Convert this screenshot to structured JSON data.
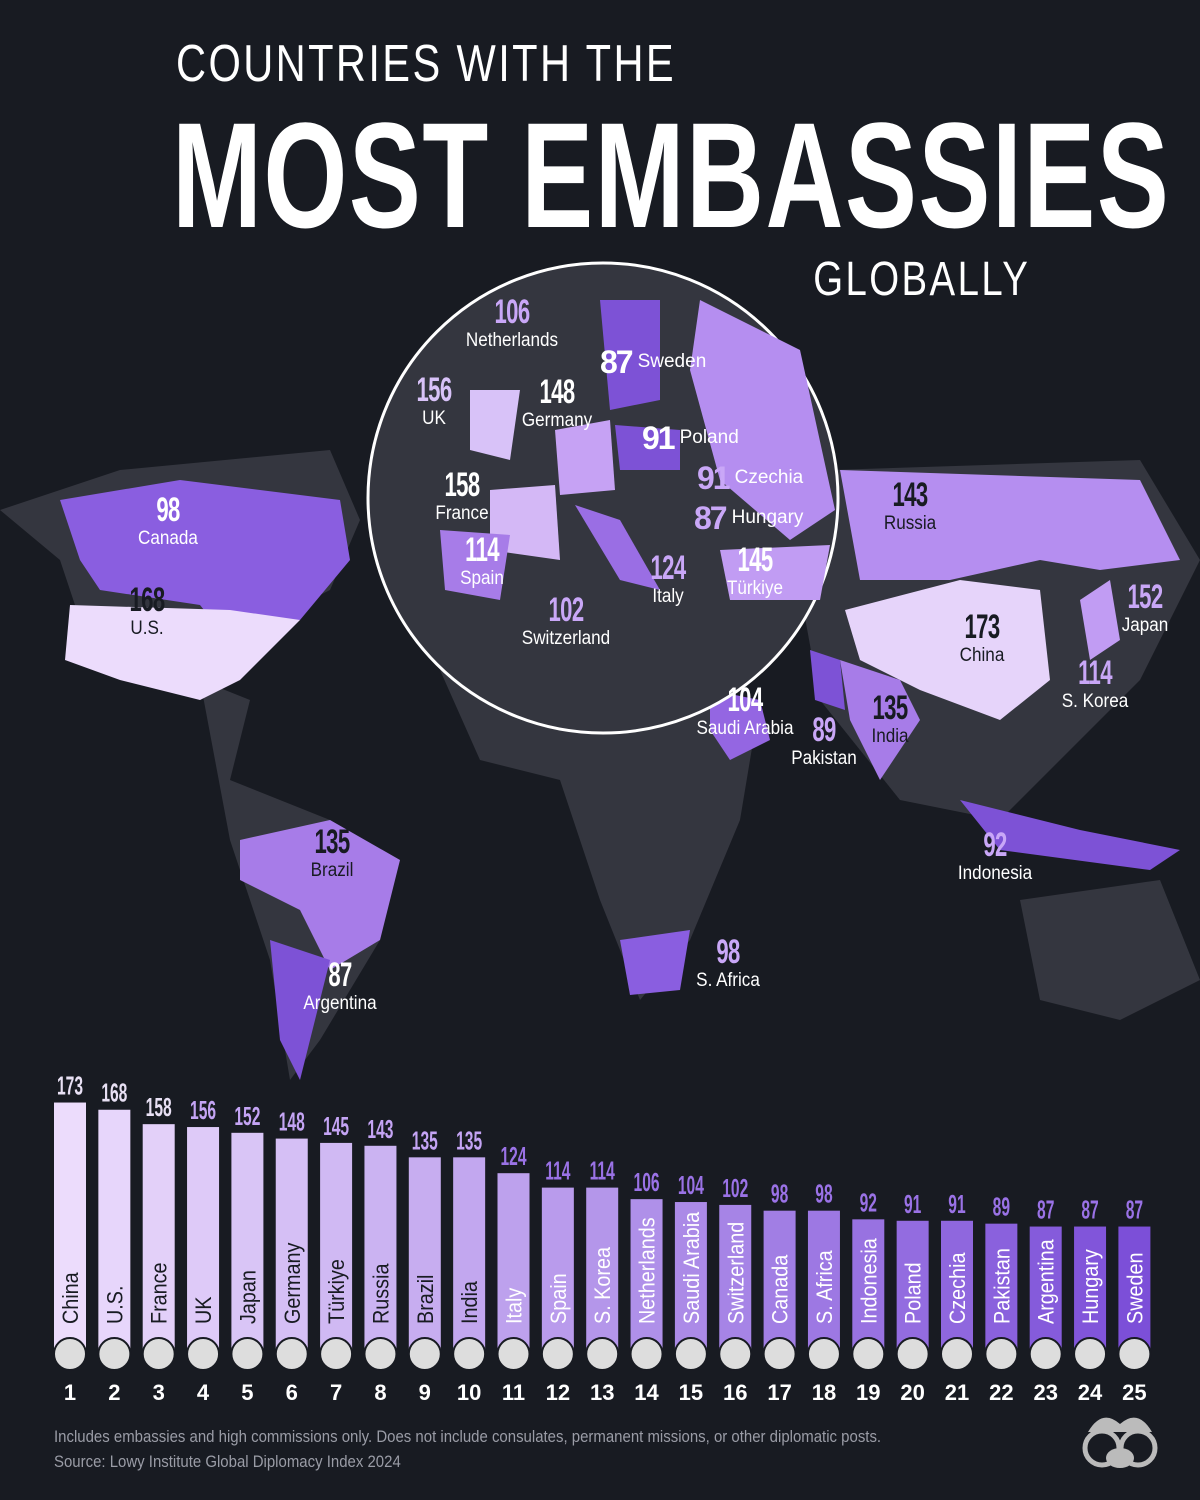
{
  "title": {
    "line1": "COUNTRIES WITH THE",
    "line2": "MOST EMBASSIES",
    "line3": "GLOBALLY"
  },
  "map": {
    "labels": [
      {
        "name": "Netherlands",
        "value": "106"
      },
      {
        "name": "Sweden",
        "value": "87"
      },
      {
        "name": "Germany",
        "value": "148"
      },
      {
        "name": "UK",
        "value": "156"
      },
      {
        "name": "Poland",
        "value": "91"
      },
      {
        "name": "Czechia",
        "value": "91"
      },
      {
        "name": "Hungary",
        "value": "87"
      },
      {
        "name": "France",
        "value": "158"
      },
      {
        "name": "Spain",
        "value": "114"
      },
      {
        "name": "Switzerland",
        "value": "102"
      },
      {
        "name": "Italy",
        "value": "124"
      },
      {
        "name": "Türkiye",
        "value": "145"
      },
      {
        "name": "Canada",
        "value": "98"
      },
      {
        "name": "U.S.",
        "value": "168"
      },
      {
        "name": "Russia",
        "value": "143"
      },
      {
        "name": "Japan",
        "value": "152"
      },
      {
        "name": "China",
        "value": "173"
      },
      {
        "name": "S. Korea",
        "value": "114"
      },
      {
        "name": "Saudi Arabia",
        "value": "104"
      },
      {
        "name": "Pakistan",
        "value": "89"
      },
      {
        "name": "India",
        "value": "135"
      },
      {
        "name": "Indonesia",
        "value": "92"
      },
      {
        "name": "Brazil",
        "value": "135"
      },
      {
        "name": "S. Africa",
        "value": "98"
      },
      {
        "name": "Argentina",
        "value": "87"
      }
    ]
  },
  "chart_data": {
    "type": "bar",
    "categories": [
      "China",
      "U.S.",
      "France",
      "UK",
      "Japan",
      "Germany",
      "Türkiye",
      "Russia",
      "Brazil",
      "India",
      "Italy",
      "Spain",
      "S. Korea",
      "Netherlands",
      "Saudi Arabia",
      "Switzerland",
      "Canada",
      "S. Africa",
      "Indonesia",
      "Poland",
      "Czechia",
      "Pakistan",
      "Argentina",
      "Hungary",
      "Sweden"
    ],
    "values": [
      173,
      168,
      158,
      156,
      152,
      148,
      145,
      143,
      135,
      135,
      124,
      114,
      114,
      106,
      104,
      102,
      98,
      98,
      92,
      91,
      91,
      89,
      87,
      87,
      87
    ],
    "ranks": [
      "1",
      "2",
      "3",
      "4",
      "5",
      "6",
      "7",
      "8",
      "9",
      "10",
      "11",
      "12",
      "13",
      "14",
      "15",
      "16",
      "17",
      "18",
      "19",
      "20",
      "21",
      "22",
      "23",
      "24",
      "25"
    ],
    "title": "",
    "xlabel": "",
    "ylabel": "",
    "colors": {
      "light": "#ecdcfc",
      "dark": "#7c4fd8",
      "background": "#181b22"
    }
  },
  "footer": {
    "note": "Includes embassies and high commissions only. Does not include consulates, permanent missions, or other diplomatic posts.",
    "source": "Source: Lowy Institute Global Diplomacy Index 2024"
  }
}
